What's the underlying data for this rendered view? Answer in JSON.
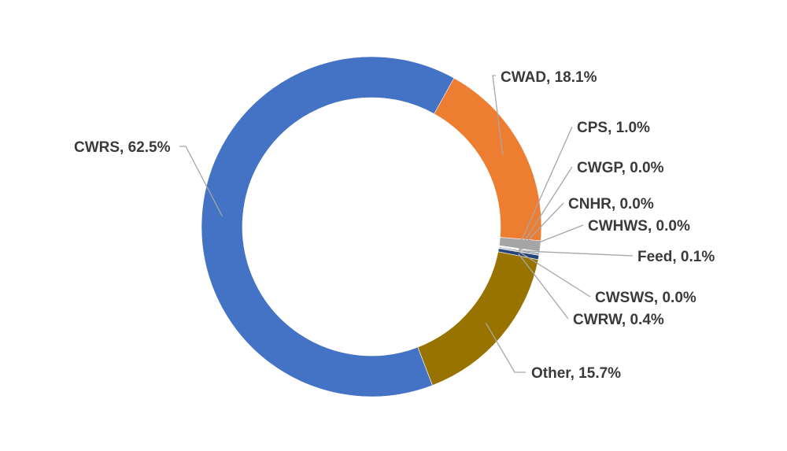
{
  "chart_data": {
    "type": "pie",
    "variant": "donut",
    "title": "",
    "legend": "none",
    "slices": [
      {
        "name": "CWAD",
        "value": 18.1,
        "display": "CWAD, 18.1%",
        "color": "#ED7D31"
      },
      {
        "name": "CPS",
        "value": 1.0,
        "display": "CPS, 1.0%",
        "color": "#A5A5A5"
      },
      {
        "name": "CWGP",
        "value": 0.0,
        "display": "CWGP, 0.0%",
        "color": "#FFC000"
      },
      {
        "name": "CNHR",
        "value": 0.0,
        "display": "CNHR, 0.0%",
        "color": "#5B9BD5"
      },
      {
        "name": "CWHWS",
        "value": 0.0,
        "display": "CWHWS, 0.0%",
        "color": "#70AD47"
      },
      {
        "name": "Feed",
        "value": 0.1,
        "display": "Feed, 0.1%",
        "color": "#264478"
      },
      {
        "name": "CWSWS",
        "value": 0.0,
        "display": "CWSWS, 0.0%",
        "color": "#9E480E"
      },
      {
        "name": "CWRW",
        "value": 0.4,
        "display": "CWRW, 0.4%",
        "color": "#264478"
      },
      {
        "name": "Other",
        "value": 15.7,
        "display": "Other, 15.7%",
        "color": "#997300"
      },
      {
        "name": "CWRS",
        "value": 62.5,
        "display": "CWRS, 62.5%",
        "color": "#4472C4"
      }
    ]
  }
}
